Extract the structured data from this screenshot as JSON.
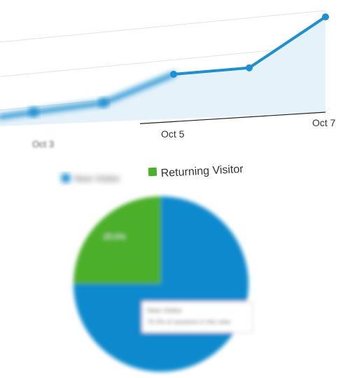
{
  "chart_data": [
    {
      "type": "area",
      "x": [
        "",
        "",
        "Oct 5",
        "",
        "Oct 7"
      ],
      "x_tick_labels": [
        "Oct 5",
        "Oct 7"
      ],
      "blurred_tick_label": "Oct 3",
      "values": [
        4,
        6,
        14,
        15,
        30
      ],
      "ylim": [
        0,
        32
      ],
      "grid": true,
      "colors": {
        "line": "#1f8fd0",
        "fill": "#e5f2fa",
        "grid": "#e2e2e2",
        "axis": "#222222"
      }
    },
    {
      "type": "pie",
      "labels": [
        "New Visitor",
        "Returning Visitor"
      ],
      "values": [
        75,
        25
      ],
      "slice_label": "25.0%",
      "tooltip_lines": [
        "New Visitor",
        "75.0% of sessions in this view"
      ],
      "legend_position": "top",
      "colors": {
        "New Visitor": "#0f8ace",
        "Returning Visitor": "#4caf2b"
      }
    }
  ]
}
